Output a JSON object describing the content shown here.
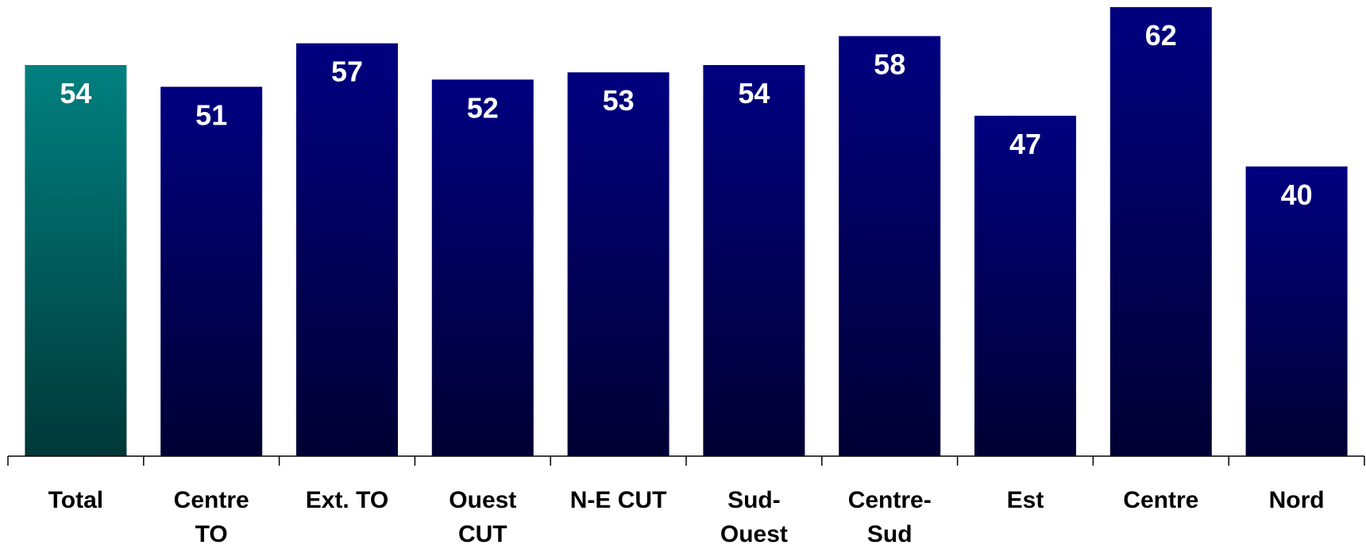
{
  "chart_data": {
    "type": "bar",
    "title": "",
    "xlabel": "",
    "ylabel": "",
    "ylim": [
      0,
      62
    ],
    "grid": false,
    "legend": "none",
    "categories": [
      [
        "Total"
      ],
      [
        "Centre",
        "TO"
      ],
      [
        "Ext. TO"
      ],
      [
        "Ouest",
        "CUT"
      ],
      [
        "N-E CUT"
      ],
      [
        "Sud-",
        "Ouest"
      ],
      [
        "Centre-",
        "Sud"
      ],
      [
        "Est"
      ],
      [
        "Centre"
      ],
      [
        "Nord"
      ]
    ],
    "values": [
      54,
      51,
      57,
      52,
      53,
      54,
      58,
      47,
      62,
      40
    ],
    "value_labels": [
      "54",
      "51",
      "57",
      "52",
      "53",
      "54",
      "58",
      "47",
      "62",
      "40"
    ],
    "highlight_index": 0,
    "colors": {
      "highlight_top": "#008080",
      "highlight_bottom": "#003838",
      "bar_top": "#000080",
      "bar_bottom": "#000033",
      "axis": "#000000"
    }
  }
}
